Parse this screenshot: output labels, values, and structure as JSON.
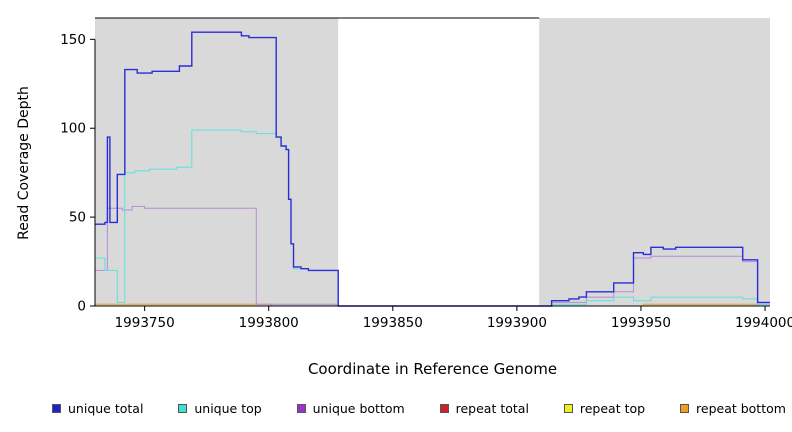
{
  "figure": {
    "xlabel": "Coordinate in Reference Genome",
    "ylabel": "Read Coverage Depth"
  },
  "chart_data": {
    "type": "line",
    "title": "",
    "xlabel": "Coordinate in Reference Genome",
    "ylabel": "Read Coverage Depth",
    "xlim": [
      1993730,
      1994002
    ],
    "ylim": [
      0,
      162
    ],
    "x_ticks": [
      1993750,
      1993800,
      1993850,
      1993900,
      1993950,
      1994000
    ],
    "y_ticks": [
      0,
      50,
      100,
      150
    ],
    "grid": false,
    "shade_color": "#d9d9d9",
    "shaded_regions": [
      {
        "x0": 1993730,
        "x1": 1993828
      },
      {
        "x0": 1993909,
        "x1": 1994002
      }
    ],
    "legend_position": "bottom",
    "series": [
      {
        "name": "repeat total",
        "color": "#CC2222",
        "legend_color": "#CC2222",
        "width": 1,
        "points": [
          [
            1993730,
            0
          ],
          [
            1994002,
            0
          ]
        ]
      },
      {
        "name": "repeat top",
        "color": "#F0F020",
        "legend_color": "#F0F020",
        "width": 1,
        "points": [
          [
            1993730,
            0
          ],
          [
            1994002,
            0
          ]
        ]
      },
      {
        "name": "repeat bottom",
        "color": "#F0A020",
        "legend_color": "#F0A020",
        "width": 1,
        "points": [
          [
            1993730,
            1
          ],
          [
            1993800,
            1
          ],
          [
            1993801,
            0
          ],
          [
            1993950,
            0
          ],
          [
            1993951,
            1
          ],
          [
            1993996,
            1
          ],
          [
            1993997,
            0
          ],
          [
            1994002,
            0
          ]
        ]
      },
      {
        "name": "unique bottom",
        "color": "#B48CD8",
        "legend_color": "#9933CC",
        "width": 1,
        "points": [
          [
            1993730,
            20
          ],
          [
            1993735,
            55
          ],
          [
            1993741,
            54
          ],
          [
            1993745,
            56
          ],
          [
            1993750,
            55
          ],
          [
            1993794,
            55
          ],
          [
            1993795,
            1
          ],
          [
            1993828,
            0
          ],
          [
            1993914,
            2
          ],
          [
            1993928,
            5
          ],
          [
            1993939,
            8
          ],
          [
            1993947,
            27
          ],
          [
            1993954,
            28
          ],
          [
            1993991,
            25
          ],
          [
            1993997,
            1
          ],
          [
            1994002,
            1
          ]
        ]
      },
      {
        "name": "unique top",
        "color": "#5CE2DE",
        "legend_color": "#40E0D0",
        "width": 1,
        "points": [
          [
            1993730,
            27
          ],
          [
            1993734,
            20
          ],
          [
            1993739,
            2
          ],
          [
            1993742,
            75
          ],
          [
            1993746,
            76
          ],
          [
            1993752,
            77
          ],
          [
            1993763,
            78
          ],
          [
            1993769,
            99
          ],
          [
            1993789,
            98
          ],
          [
            1993795,
            97
          ],
          [
            1993803,
            95
          ],
          [
            1993805,
            90
          ],
          [
            1993807,
            88
          ],
          [
            1993808,
            60
          ],
          [
            1993809,
            35
          ],
          [
            1993810,
            21
          ],
          [
            1993816,
            20
          ],
          [
            1993828,
            0
          ],
          [
            1993914,
            1
          ],
          [
            1993928,
            3
          ],
          [
            1993939,
            5
          ],
          [
            1993947,
            3
          ],
          [
            1993954,
            5
          ],
          [
            1993991,
            4
          ],
          [
            1993997,
            1
          ],
          [
            1994002,
            1
          ]
        ]
      },
      {
        "name": "unique total",
        "color": "#2C2CD8",
        "legend_color": "#2121CC",
        "width": 1.4,
        "points": [
          [
            1993730,
            46
          ],
          [
            1993734,
            47
          ],
          [
            1993735,
            95
          ],
          [
            1993736,
            47
          ],
          [
            1993739,
            74
          ],
          [
            1993742,
            133
          ],
          [
            1993747,
            131
          ],
          [
            1993753,
            132
          ],
          [
            1993764,
            135
          ],
          [
            1993769,
            154
          ],
          [
            1993789,
            152
          ],
          [
            1993792,
            151
          ],
          [
            1993803,
            95
          ],
          [
            1993805,
            90
          ],
          [
            1993807,
            88
          ],
          [
            1993808,
            60
          ],
          [
            1993809,
            35
          ],
          [
            1993810,
            22
          ],
          [
            1993813,
            21
          ],
          [
            1993816,
            20
          ],
          [
            1993828,
            0
          ],
          [
            1993914,
            3
          ],
          [
            1993921,
            4
          ],
          [
            1993925,
            5
          ],
          [
            1993928,
            8
          ],
          [
            1993939,
            13
          ],
          [
            1993947,
            30
          ],
          [
            1993951,
            29
          ],
          [
            1993954,
            33
          ],
          [
            1993959,
            32
          ],
          [
            1993964,
            33
          ],
          [
            1993991,
            26
          ],
          [
            1993997,
            2
          ],
          [
            1994002,
            2
          ]
        ]
      }
    ],
    "legend": [
      {
        "label": "unique total",
        "color": "#2121CC"
      },
      {
        "label": "unique top",
        "color": "#40E0D0"
      },
      {
        "label": "unique bottom",
        "color": "#9933CC"
      },
      {
        "label": "repeat total",
        "color": "#CC2222"
      },
      {
        "label": "repeat top",
        "color": "#F0F020"
      },
      {
        "label": "repeat bottom",
        "color": "#F0A020"
      }
    ]
  }
}
